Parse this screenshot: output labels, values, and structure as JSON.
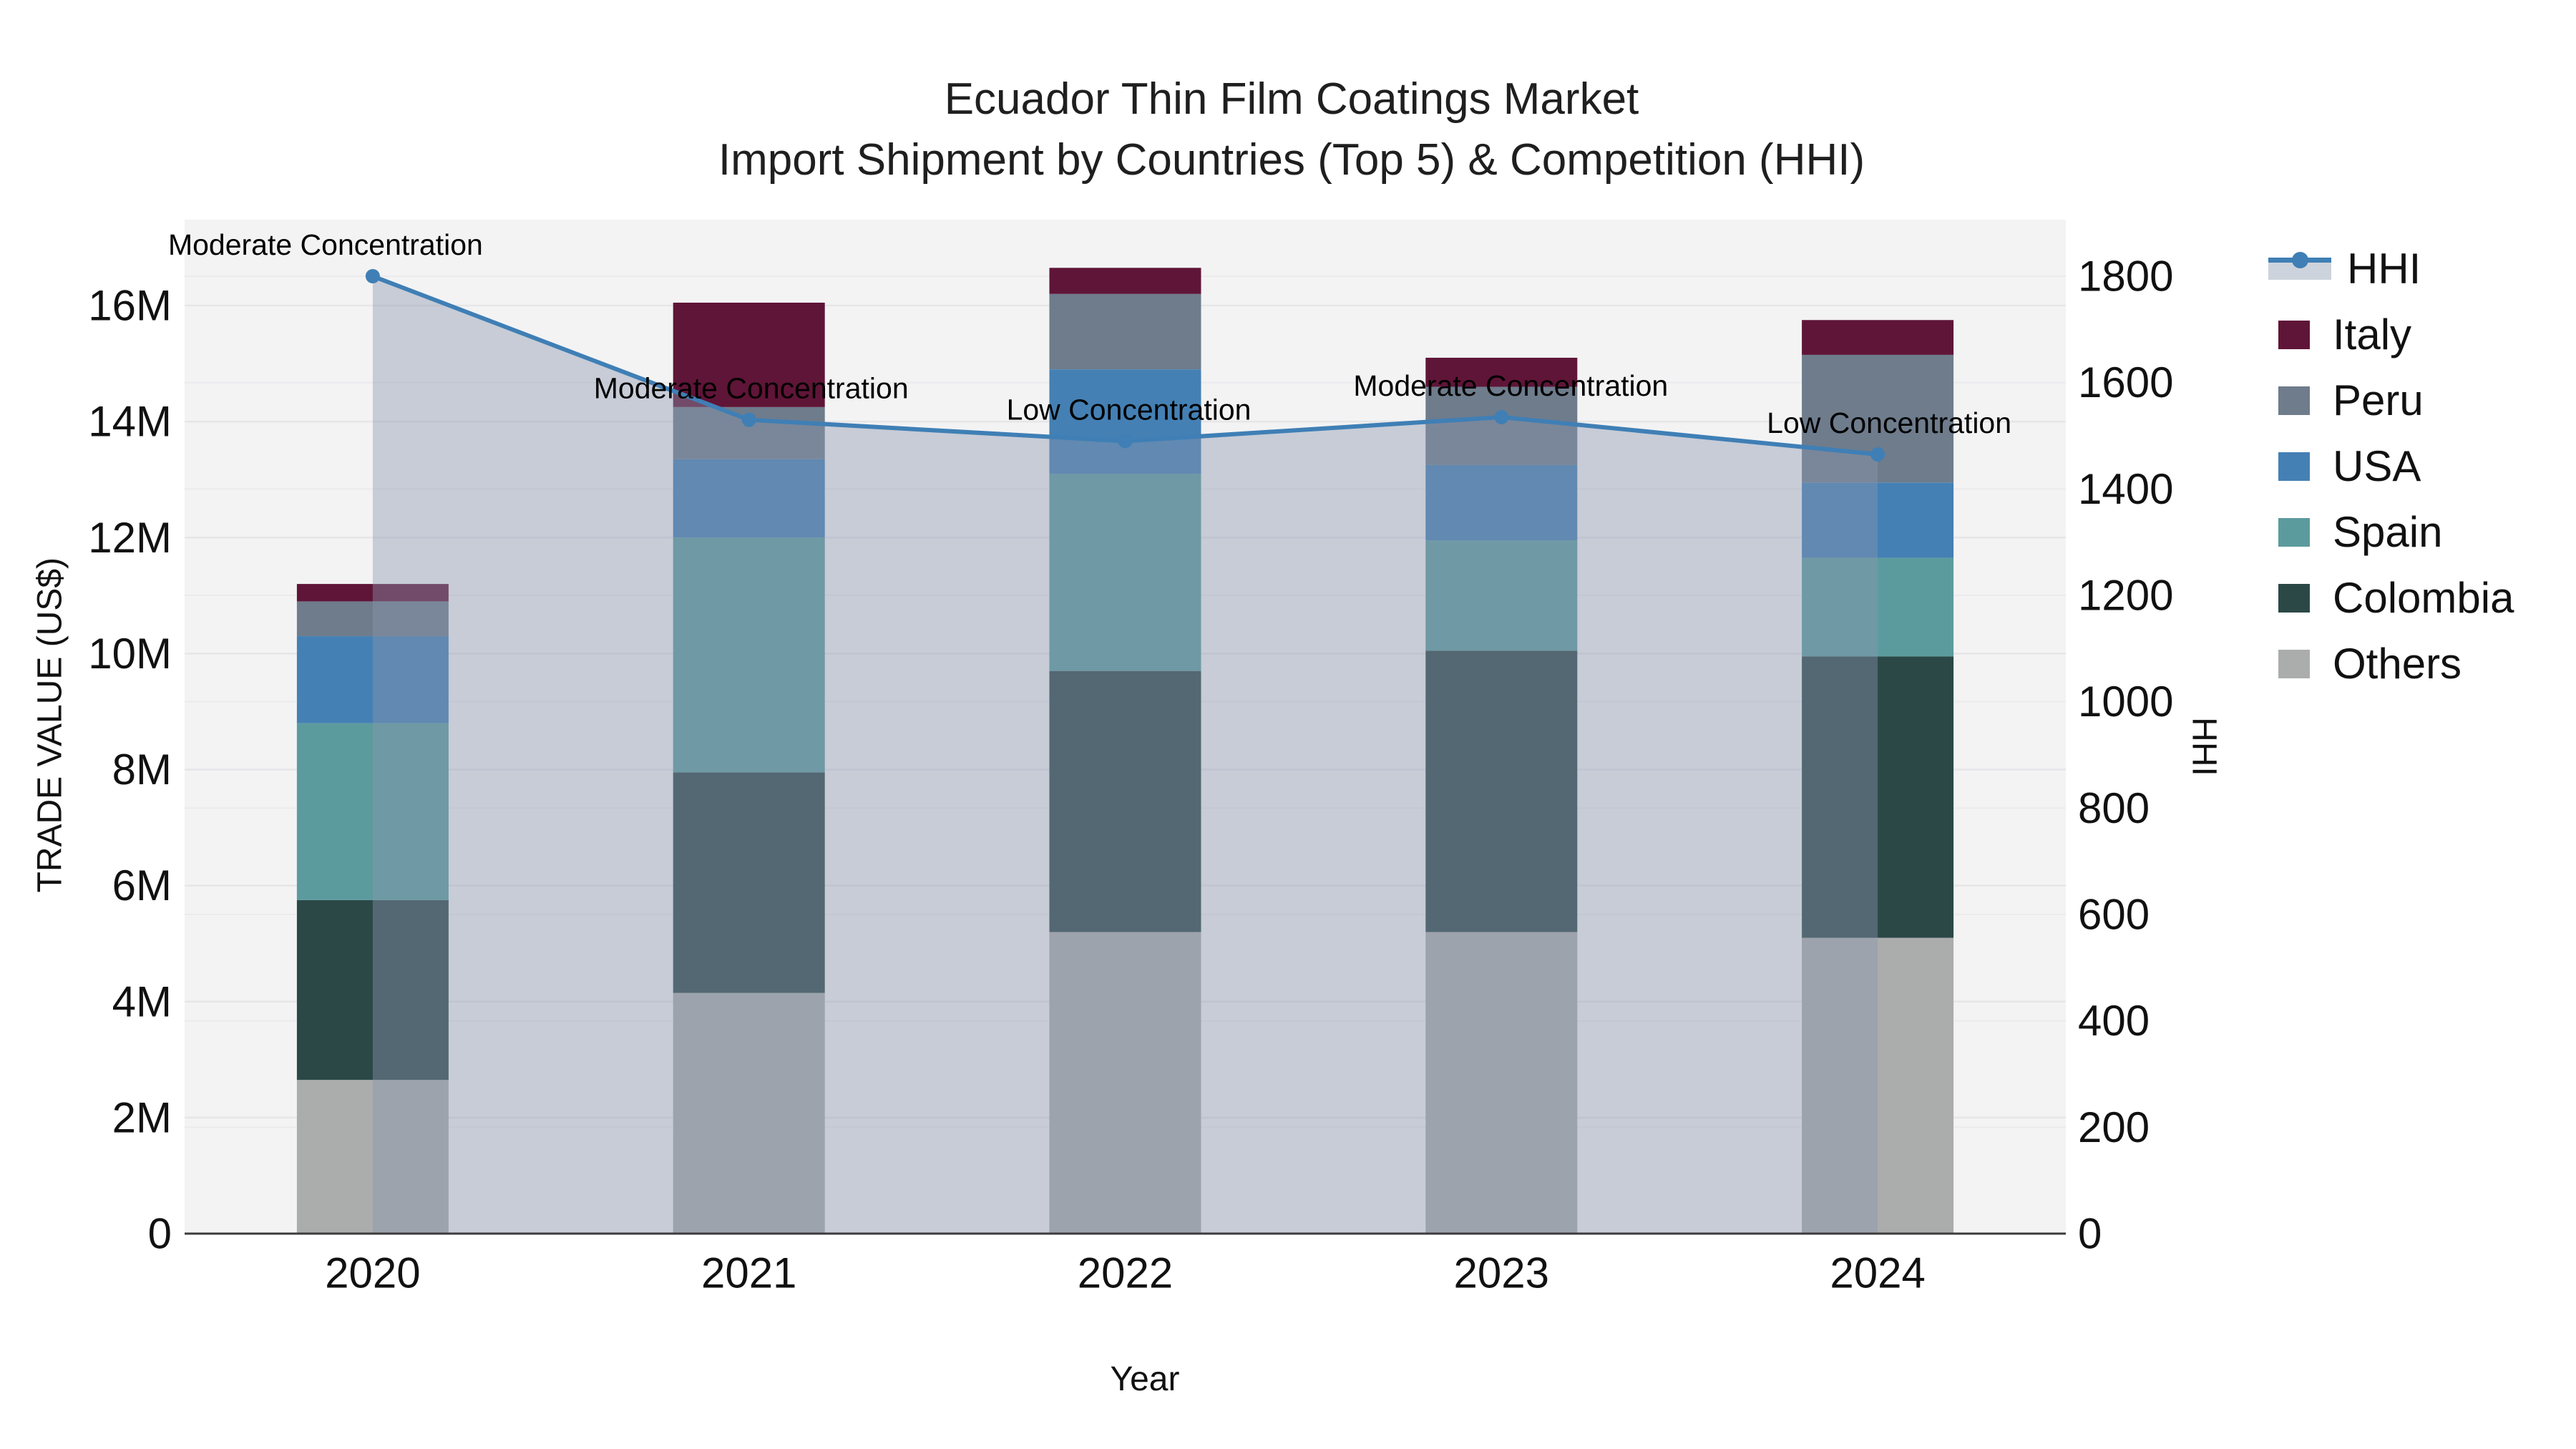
{
  "title": {
    "line1": "Ecuador Thin Film Coatings Market",
    "line2": "Import Shipment by Countries (Top 5) & Competition (HHI)"
  },
  "axes": {
    "x_title": "Year",
    "left_title": "TRADE VALUE (US$)",
    "right_title": "HHI",
    "left_tick_labels": [
      "0",
      "2M",
      "4M",
      "6M",
      "8M",
      "10M",
      "12M",
      "14M",
      "16M"
    ],
    "right_tick_labels": [
      "0",
      "200",
      "400",
      "600",
      "800",
      "1000",
      "1200",
      "1400",
      "1600",
      "1800"
    ]
  },
  "legend": {
    "items": [
      {
        "label": "HHI",
        "kind": "line",
        "color": "#3f7fb5",
        "fill": "#cdd3dc"
      },
      {
        "label": "Italy",
        "kind": "swatch",
        "color": "#5f1537"
      },
      {
        "label": "Peru",
        "kind": "swatch",
        "color": "#6e7c8c"
      },
      {
        "label": "USA",
        "kind": "swatch",
        "color": "#4480b4"
      },
      {
        "label": "Spain",
        "kind": "swatch",
        "color": "#5c9b9d"
      },
      {
        "label": "Colombia",
        "kind": "swatch",
        "color": "#2b4847"
      },
      {
        "label": "Others",
        "kind": "swatch",
        "color": "#abadac"
      }
    ]
  },
  "chart_data": {
    "type": "bar",
    "subtype": "stacked bars with secondary-axis line",
    "title": "Ecuador Thin Film Coatings Market — Import Shipment by Countries (Top 5) & Competition (HHI)",
    "xlabel": "Year",
    "ylabel_left": "TRADE VALUE (US$)",
    "ylabel_right": "HHI",
    "categories": [
      "2020",
      "2021",
      "2022",
      "2023",
      "2024"
    ],
    "value_unit": "million US$",
    "ylim_left": [
      0,
      17.5
    ],
    "ylim_right": [
      0,
      1906
    ],
    "grid": true,
    "legend_position": "right",
    "series": [
      {
        "name": "Others",
        "color": "#abadac",
        "values": [
          2.65,
          4.15,
          5.2,
          5.2,
          5.1
        ]
      },
      {
        "name": "Colombia",
        "color": "#2b4847",
        "values": [
          3.1,
          3.8,
          4.5,
          4.85,
          4.85
        ]
      },
      {
        "name": "Spain",
        "color": "#5c9b9d",
        "values": [
          3.05,
          4.05,
          3.4,
          1.9,
          1.7
        ]
      },
      {
        "name": "USA",
        "color": "#4480b4",
        "values": [
          1.5,
          1.35,
          1.8,
          1.3,
          1.3
        ]
      },
      {
        "name": "Peru",
        "color": "#6e7c8c",
        "values": [
          0.6,
          0.9,
          1.3,
          1.35,
          2.2
        ]
      },
      {
        "name": "Italy",
        "color": "#5f1537",
        "values": [
          0.3,
          1.8,
          0.45,
          0.5,
          0.6
        ]
      }
    ],
    "line_series": {
      "name": "HHI",
      "axis": "right",
      "color": "#3f7fb5",
      "area_fill": "rgba(138,150,175,0.42)",
      "values": [
        1800,
        1530,
        1490,
        1535,
        1465
      ]
    },
    "annotations": [
      {
        "category": "2020",
        "text": "Moderate Concentration"
      },
      {
        "category": "2021",
        "text": "Moderate Concentration"
      },
      {
        "category": "2022",
        "text": "Low Concentration"
      },
      {
        "category": "2023",
        "text": "Moderate Concentration"
      },
      {
        "category": "2024",
        "text": "Low Concentration"
      }
    ],
    "colors": {
      "plot_background": "#f3f3f4",
      "gridline": "#e6e6e8",
      "axis_line": "#3c3c3c",
      "text": "#111111"
    }
  }
}
